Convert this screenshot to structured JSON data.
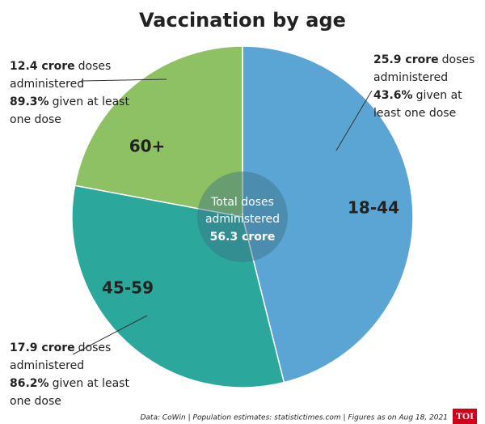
{
  "chart_data": {
    "type": "pie",
    "title": "Vaccination by age",
    "categories": [
      "18-44",
      "45-59",
      "60+"
    ],
    "values": [
      25.9,
      17.9,
      12.4
    ],
    "value_labels": [
      "25.9 crore",
      "17.9 crore",
      "12.4 crore"
    ],
    "colors": [
      "#5aa5d3",
      "#2ba89b",
      "#8dc163"
    ],
    "notes": [
      {
        "doses": "doses",
        "administered": "administered",
        "share": 43.6,
        "share_label": "43.6%",
        "rest": [
          "given at",
          "least one dose"
        ]
      },
      {
        "doses": "doses",
        "administered": "administered",
        "share": 86.2,
        "share_label": "86.2%",
        "rest": [
          "given at least",
          "one dose"
        ]
      },
      {
        "doses": "doses",
        "administered": "administered",
        "share": 89.3,
        "share_label": "89.3%",
        "rest": [
          "given at least",
          "one dose"
        ]
      }
    ],
    "center_label": [
      "Total doses",
      "administered"
    ],
    "total": 56.3,
    "total_label": "56.3 crore",
    "source": "Data: CoWin | Population estimates: statistictimes.com | Figures as on Aug 18, 2021",
    "logo": "TOI"
  }
}
